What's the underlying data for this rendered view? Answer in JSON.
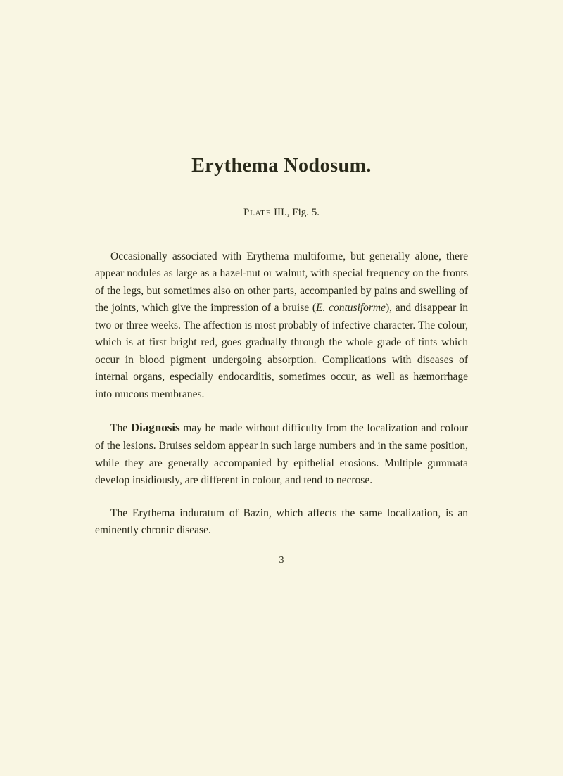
{
  "title": "Erythema Nodosum.",
  "plateRef": {
    "label": "Plate",
    "number": "III.,",
    "figLabel": "Fig.",
    "figNumber": "5."
  },
  "paragraph1": {
    "text1": "Occasionally associated with Erythema multiforme, but generally alone, there appear nodules as large as a hazel-nut or walnut, with special frequency on the fronts of the legs, but sometimes also on other parts, accompanied by pains and swelling of the joints, which give the impression of a bruise (",
    "italic1": "E. contusiforme",
    "text2": "), and disappear in two or three weeks. The affection is most probably of infective character. The colour, which is at first bright red, goes gradually through the whole grade of tints which occur in blood pigment undergoing absorption. Complications with diseases of internal organs, especially endocarditis, sometimes occur, as well as hæmorrhage into mucous membranes."
  },
  "paragraph2": {
    "text1": "The ",
    "label": "Diagnosis",
    "text2": " may be made without difficulty from the localization and colour of the lesions. Bruises seldom appear in such large numbers and in the same position, while they are generally accompanied by epithelial erosions. Multiple gummata develop insidiously, are different in colour, and tend to necrose."
  },
  "paragraph3": "The Erythema induratum of Bazin, which affects the same localization, is an eminently chronic disease.",
  "pageNumber": "3"
}
